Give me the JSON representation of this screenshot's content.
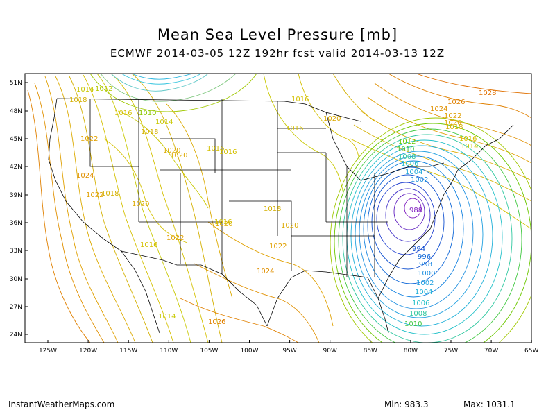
{
  "title": "Mean Sea Level Pressure [mb]",
  "subtitle": "ECMWF 2014-03-05 12Z 192hr fcst valid 2014-03-13 12Z",
  "lat_labels": [
    "51N",
    "48N",
    "45N",
    "42N",
    "39N",
    "36N",
    "33N",
    "30N",
    "27N",
    "24N"
  ],
  "lon_labels": [
    "125W",
    "120W",
    "115W",
    "110W",
    "105W",
    "100W",
    "95W",
    "90W",
    "85W",
    "80W",
    "75W",
    "70W",
    "65W"
  ],
  "contour_labels": [
    {
      "text": "1014",
      "color": "#c8c800"
    },
    {
      "text": "1012",
      "color": "#b4c800"
    },
    {
      "text": "1018",
      "color": "#d4b000"
    },
    {
      "text": "1016",
      "color": "#d4c000"
    },
    {
      "text": "1010",
      "color": "#8cc800"
    },
    {
      "text": "1014",
      "color": "#c8c800"
    },
    {
      "text": "1018",
      "color": "#d4b000"
    },
    {
      "text": "1022",
      "color": "#e0a000"
    },
    {
      "text": "1020",
      "color": "#dcaa00"
    },
    {
      "text": "1024",
      "color": "#e09000"
    },
    {
      "text": "1022",
      "color": "#e0a000"
    },
    {
      "text": "1018",
      "color": "#d4b000"
    },
    {
      "text": "1020",
      "color": "#dcaa00"
    },
    {
      "text": "1020",
      "color": "#dcaa00"
    },
    {
      "text": "1016",
      "color": "#d4c000"
    },
    {
      "text": "1022",
      "color": "#e0a000"
    },
    {
      "text": "1016",
      "color": "#d4c000"
    },
    {
      "text": "1020",
      "color": "#dcaa00"
    },
    {
      "text": "1022",
      "color": "#e0a000"
    },
    {
      "text": "1024",
      "color": "#e09000"
    },
    {
      "text": "1018",
      "color": "#d4b000"
    },
    {
      "text": "1020",
      "color": "#dcaa00"
    },
    {
      "text": "1016",
      "color": "#d4c000"
    },
    {
      "text": "1014",
      "color": "#c8c800"
    },
    {
      "text": "1026",
      "color": "#e08000"
    },
    {
      "text": "1016",
      "color": "#d4c000"
    },
    {
      "text": "1016",
      "color": "#d4c000"
    },
    {
      "text": "1016",
      "color": "#d4c000"
    },
    {
      "text": "1020",
      "color": "#dcaa00"
    },
    {
      "text": "1028",
      "color": "#e07000"
    },
    {
      "text": "1026",
      "color": "#e08000"
    },
    {
      "text": "1024",
      "color": "#e09000"
    },
    {
      "text": "1022",
      "color": "#e0a000"
    },
    {
      "text": "1020",
      "color": "#dcaa00"
    },
    {
      "text": "1018",
      "color": "#d4b000"
    },
    {
      "text": "1016",
      "color": "#d4c000"
    },
    {
      "text": "1014",
      "color": "#c8c800"
    },
    {
      "text": "1012",
      "color": "#6cc800"
    },
    {
      "text": "1010",
      "color": "#40c840"
    },
    {
      "text": "1008",
      "color": "#30c8a0"
    },
    {
      "text": "1006",
      "color": "#20b8c8"
    },
    {
      "text": "1004",
      "color": "#20a8d8"
    },
    {
      "text": "1002",
      "color": "#2090e0"
    },
    {
      "text": "994",
      "color": "#1050d0"
    },
    {
      "text": "996",
      "color": "#1068d8"
    },
    {
      "text": "998",
      "color": "#1080e0"
    },
    {
      "text": "1000",
      "color": "#2090e0"
    },
    {
      "text": "1002",
      "color": "#20a0e0"
    },
    {
      "text": "1004",
      "color": "#20b0d8"
    },
    {
      "text": "1006",
      "color": "#20c0c8"
    },
    {
      "text": "1008",
      "color": "#30c8a0"
    },
    {
      "text": "1010",
      "color": "#40c840"
    },
    {
      "text": "988",
      "color": "#8020c0"
    }
  ],
  "footer": {
    "site": "InstantWeatherMaps.com",
    "min": "Min:  983.3",
    "max": "Max: 1031.1"
  },
  "colors": {
    "high": "#e07000",
    "mid": "#dcaa00",
    "low_mid": "#40c840",
    "low": "#2090e0",
    "lowest": "#8020c0",
    "borders": "#000000"
  }
}
